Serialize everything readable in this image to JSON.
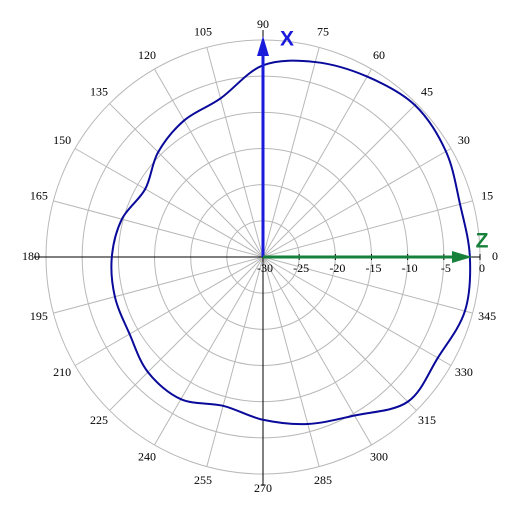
{
  "chart_data": {
    "type": "polar",
    "x": [
      0,
      15,
      30,
      45,
      60,
      75,
      90,
      105,
      120,
      135,
      150,
      165,
      180,
      195,
      210,
      225,
      240,
      255,
      270,
      285,
      300,
      315,
      330,
      345
    ],
    "values": [
      -1.4,
      -1.8,
      -0.8,
      -0.3,
      -1.2,
      -2.1,
      -3.5,
      -7.3,
      -8.2,
      -9.5,
      -11.2,
      -9.8,
      -9.1,
      -8.8,
      -8.7,
      -7.5,
      -7.3,
      -8.7,
      -7.5,
      -6.1,
      -4.7,
      -1.7,
      -2.1,
      -1.1
    ],
    "color": "#0a0a9a",
    "xticks": [
      0,
      15,
      30,
      45,
      60,
      75,
      90,
      105,
      120,
      135,
      150,
      165,
      180,
      195,
      210,
      225,
      240,
      255,
      270,
      285,
      300,
      315,
      330,
      345
    ],
    "ylim": [
      -30,
      0
    ],
    "yticks": [
      -30,
      -25,
      -20,
      -15,
      -10,
      -5,
      0
    ],
    "grid": true,
    "annotations": [
      {
        "text": "X",
        "color": "#1a1adb"
      },
      {
        "text": "Z",
        "color": "#17803a"
      }
    ]
  }
}
